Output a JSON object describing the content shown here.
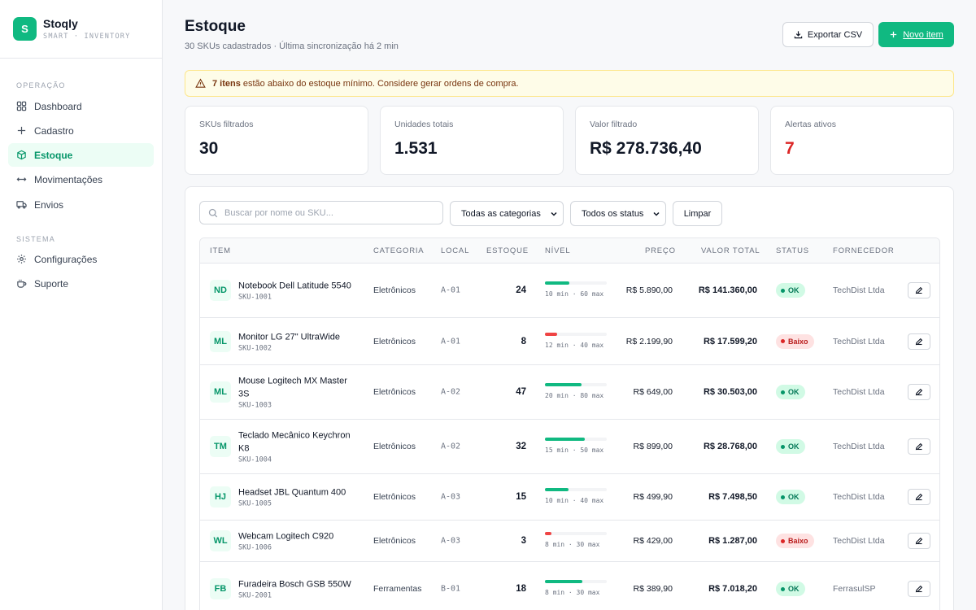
{
  "brand": {
    "logo": "S",
    "name": "Stoqly",
    "sub": "SMART · INVENTORY"
  },
  "sidebar": {
    "sections": [
      {
        "title": "OPERAÇÃO"
      },
      {
        "title": "SISTEMA"
      }
    ],
    "items": [
      {
        "label": "Dashboard",
        "icon": "grid-icon"
      },
      {
        "label": "Cadastro",
        "icon": "plus-icon"
      },
      {
        "label": "Estoque",
        "icon": "box-icon",
        "active": true
      },
      {
        "label": "Movimentações",
        "icon": "arrows-icon"
      },
      {
        "label": "Envios",
        "icon": "truck-icon"
      },
      {
        "label": "Configurações",
        "icon": "gear-icon"
      },
      {
        "label": "Suporte",
        "icon": "cup-icon"
      }
    ]
  },
  "header": {
    "title": "Estoque",
    "subtitle": "30 SKUs cadastrados · Última sincronização há 2 min",
    "export_label": "Exportar CSV",
    "new_label": "Novo item"
  },
  "alert": {
    "bold": "7 itens",
    "text": "estão abaixo do estoque mínimo. Considere gerar ordens de compra."
  },
  "stats": [
    {
      "label": "SKUs filtrados",
      "value": "30"
    },
    {
      "label": "Unidades totais",
      "value": "1.531"
    },
    {
      "label": "Valor filtrado",
      "value": "R$ 278.736,40"
    },
    {
      "label": "Alertas ativos",
      "value": "7"
    }
  ],
  "filters": {
    "search_placeholder": "Buscar por nome ou SKU...",
    "category": "Todas as categorias",
    "status": "Todos os status",
    "clear_label": "Limpar"
  },
  "table": {
    "headers": {
      "item": "ITEM",
      "category": "CATEGORIA",
      "local": "LOCAL",
      "stock": "ESTOQUE",
      "level": "NÍVEL",
      "price": "PREÇO",
      "total": "VALOR TOTAL",
      "status": "STATUS",
      "supplier": "FORNECEDOR"
    },
    "rows": [
      {
        "initials": "ND",
        "name": "Notebook Dell Latitude 5540",
        "sku": "SKU-1001",
        "category": "Eletrônicos",
        "local": "A-01",
        "stock": "24",
        "level": "10 min · 60 max",
        "fill": 0.4,
        "price": "R$ 5.890,00",
        "total": "R$ 141.360,00",
        "status": "OK",
        "supplier": "TechDist Ltda"
      },
      {
        "initials": "ML",
        "name": "Monitor LG 27\" UltraWide",
        "sku": "SKU-1002",
        "category": "Eletrônicos",
        "local": "A-01",
        "stock": "8",
        "level": "12 min · 40 max",
        "fill": 0.2,
        "price": "R$ 2.199,90",
        "total": "R$ 17.599,20",
        "status": "Baixo",
        "supplier": "TechDist Ltda"
      },
      {
        "initials": "ML",
        "name": "Mouse Logitech MX Master 3S",
        "sku": "SKU-1003",
        "category": "Eletrônicos",
        "local": "A-02",
        "stock": "47",
        "level": "20 min · 80 max",
        "fill": 0.59,
        "price": "R$ 649,00",
        "total": "R$ 30.503,00",
        "status": "OK",
        "supplier": "TechDist Ltda"
      },
      {
        "initials": "TM",
        "name": "Teclado Mecânico Keychron K8",
        "sku": "SKU-1004",
        "category": "Eletrônicos",
        "local": "A-02",
        "stock": "32",
        "level": "15 min · 50 max",
        "fill": 0.64,
        "price": "R$ 899,00",
        "total": "R$ 28.768,00",
        "status": "OK",
        "supplier": "TechDist Ltda"
      },
      {
        "initials": "HJ",
        "name": "Headset JBL Quantum 400",
        "sku": "SKU-1005",
        "category": "Eletrônicos",
        "local": "A-03",
        "stock": "15",
        "level": "10 min · 40 max",
        "fill": 0.375,
        "price": "R$ 499,90",
        "total": "R$ 7.498,50",
        "status": "OK",
        "supplier": "TechDist Ltda"
      },
      {
        "initials": "WL",
        "name": "Webcam Logitech C920",
        "sku": "SKU-1006",
        "category": "Eletrônicos",
        "local": "A-03",
        "stock": "3",
        "level": "8 min · 30 max",
        "fill": 0.1,
        "price": "R$ 429,00",
        "total": "R$ 1.287,00",
        "status": "Baixo",
        "supplier": "TechDist Ltda"
      },
      {
        "initials": "FB",
        "name": "Furadeira Bosch GSB 550W",
        "sku": "SKU-2001",
        "category": "Ferramentas",
        "local": "B-01",
        "stock": "18",
        "level": "8 min · 30 max",
        "fill": 0.6,
        "price": "R$ 389,90",
        "total": "R$ 7.018,20",
        "status": "OK",
        "supplier": "FerrasulSP"
      }
    ]
  },
  "colors": {
    "accent": "#10b981",
    "danger": "#dc2626",
    "alert_bg": "#fefce8"
  }
}
